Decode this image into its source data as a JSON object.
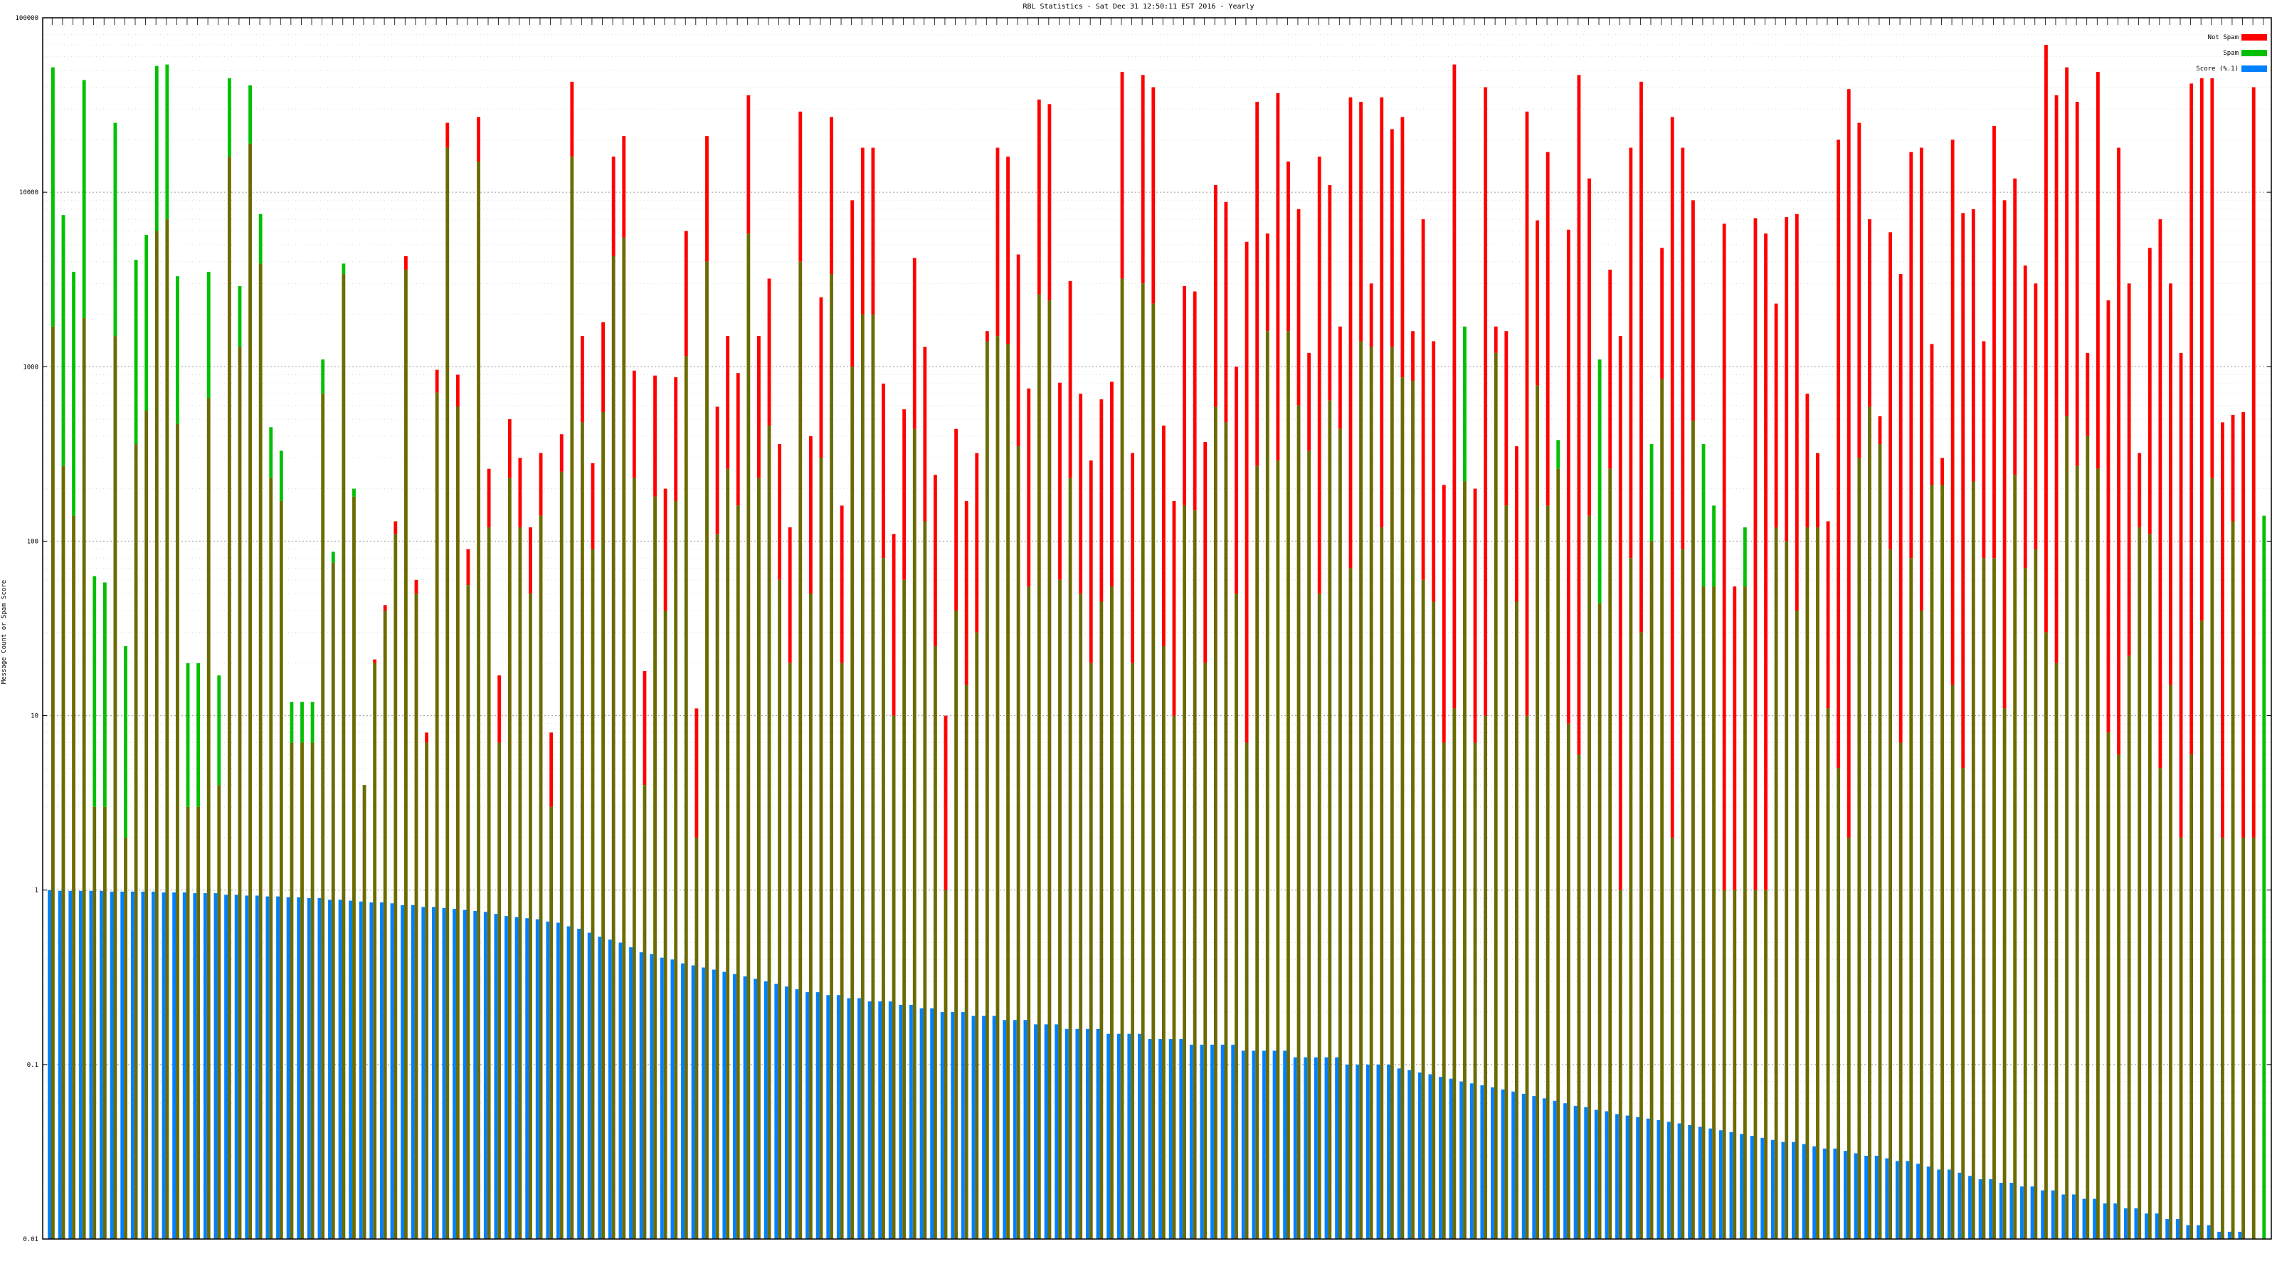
{
  "chart_data": {
    "type": "bar",
    "title": "RBL Statistics - Sat Dec 31 12:50:11 EST 2016 - Yearly",
    "ylabel": "Message Count or Spam Score",
    "xlabel": "",
    "yscale": "log",
    "ylim": [
      0.01,
      100000
    ],
    "y_ticks": [
      "0.01",
      "0.1",
      "1",
      "10",
      "100",
      "1000",
      "10000",
      "100000"
    ],
    "grid": true,
    "legend_position": "top-right",
    "colors": {
      "not_spam": "#ff0000",
      "spam": "#00c000",
      "score": "#0080ff",
      "overlap": "#6b6b00"
    },
    "series": [
      {
        "name": "Not Spam",
        "values": [
          1700,
          270,
          140,
          1900,
          3,
          3,
          1500,
          2,
          360,
          560,
          6000,
          7000,
          470,
          3,
          3,
          660,
          4,
          16000,
          1300,
          19000,
          3900,
          230,
          170,
          7,
          7,
          7,
          700,
          75,
          3400,
          180,
          4,
          21,
          43,
          130,
          4300,
          60,
          8,
          960,
          25000,
          900,
          90,
          27000,
          260,
          17,
          500,
          300,
          120,
          320,
          8,
          410,
          43000,
          1500,
          280,
          1800,
          16000,
          21000,
          950,
          18,
          890,
          200,
          870,
          6000,
          11,
          21000,
          590,
          1500,
          920,
          36000,
          1500,
          3200,
          360,
          120,
          29000,
          400,
          2500,
          27000,
          160,
          9000,
          18000,
          18000,
          800,
          110,
          570,
          4200,
          1300,
          240,
          10,
          440,
          170,
          320,
          1600,
          18000,
          16000,
          4400,
          750,
          34000,
          32000,
          810,
          3100,
          700,
          290,
          650,
          820,
          49000,
          320,
          47000,
          40000,
          460,
          170,
          2900,
          2700,
          370,
          11000,
          8800,
          1000,
          5200,
          33000,
          5800,
          37000,
          15000,
          8000,
          1200,
          16000,
          11000,
          1700,
          35000,
          33000,
          3000,
          35000,
          23000,
          27000,
          1600,
          7000,
          1400,
          210,
          54000,
          220,
          200,
          40000,
          1700,
          1600,
          350,
          29000,
          6900,
          17000,
          260,
          6100,
          47000,
          12000,
          44,
          3600,
          1500,
          18000,
          43000,
          100,
          4800,
          27000,
          18000,
          9000,
          55,
          55,
          6600,
          55,
          55,
          7100,
          5800,
          2300,
          7200,
          7500,
          700,
          320,
          130,
          20000,
          39000,
          25000,
          7000,
          520,
          5900,
          3400,
          17000,
          18000,
          1350,
          300,
          20000,
          7600,
          8000,
          1400,
          24000,
          9000,
          12000,
          3800,
          3000,
          70000,
          36000,
          52000,
          33000,
          1200,
          49000,
          2400,
          18000,
          3000,
          320,
          4800,
          7000,
          3000,
          1200,
          42000,
          45000,
          45000,
          480,
          530,
          550,
          40000
        ],
        "approximate": true
      },
      {
        "name": "Spam",
        "values": [
          52000,
          7400,
          3500,
          44000,
          63,
          58,
          25000,
          25,
          4100,
          5700,
          53000,
          54000,
          3300,
          20,
          20,
          3500,
          17,
          45000,
          2900,
          41000,
          7500,
          450,
          330,
          12,
          12,
          12,
          1100,
          87,
          3900,
          200,
          4,
          20,
          40,
          110,
          3600,
          50,
          7,
          710,
          18000,
          590,
          56,
          15000,
          120,
          7,
          230,
          120,
          50,
          140,
          3,
          250,
          16000,
          480,
          90,
          550,
          4300,
          5500,
          230,
          4,
          180,
          40,
          170,
          1150,
          2,
          4000,
          110,
          260,
          160,
          5800,
          230,
          460,
          60,
          20,
          4000,
          50,
          300,
          3400,
          20,
          1000,
          2000,
          2000,
          80,
          10,
          60,
          440,
          130,
          25,
          1,
          40,
          15,
          30,
          1400,
          1500,
          1350,
          350,
          55,
          2600,
          2400,
          60,
          230,
          50,
          20,
          45,
          55,
          3200,
          20,
          3000,
          2300,
          25,
          10,
          160,
          150,
          20,
          590,
          480,
          50,
          7,
          270,
          1600,
          290,
          1600,
          600,
          330,
          50,
          640,
          440,
          70,
          1400,
          1300,
          120,
          1300,
          870,
          830,
          60,
          45,
          7,
          11,
          1700,
          7,
          10,
          1200,
          160,
          45,
          10,
          780,
          160,
          380,
          9,
          6,
          140,
          1100,
          260,
          1,
          80,
          30,
          360,
          850,
          2,
          90,
          490,
          360,
          160,
          1,
          1,
          120,
          1,
          1,
          120,
          100,
          40,
          120,
          120,
          11,
          5,
          2,
          300,
          590,
          360,
          90,
          7,
          80,
          40,
          210,
          210,
          15,
          5,
          220,
          80,
          80,
          11,
          240,
          70,
          90,
          30,
          20,
          520,
          270,
          400,
          260,
          8,
          6,
          22,
          120,
          110,
          5,
          15,
          2,
          6,
          35,
          230,
          2,
          130,
          2,
          2,
          140
        ],
        "approximate": true
      },
      {
        "name": "Score (%.1)",
        "values": [
          1.0,
          0.99,
          0.99,
          0.99,
          0.99,
          0.99,
          0.98,
          0.98,
          0.98,
          0.98,
          0.98,
          0.97,
          0.97,
          0.97,
          0.96,
          0.96,
          0.96,
          0.94,
          0.94,
          0.93,
          0.93,
          0.92,
          0.92,
          0.91,
          0.91,
          0.9,
          0.9,
          0.88,
          0.88,
          0.87,
          0.86,
          0.85,
          0.85,
          0.84,
          0.82,
          0.82,
          0.8,
          0.8,
          0.79,
          0.78,
          0.77,
          0.76,
          0.75,
          0.73,
          0.71,
          0.7,
          0.69,
          0.68,
          0.66,
          0.65,
          0.62,
          0.6,
          0.57,
          0.54,
          0.52,
          0.5,
          0.47,
          0.44,
          0.43,
          0.41,
          0.4,
          0.38,
          0.37,
          0.36,
          0.35,
          0.34,
          0.33,
          0.32,
          0.31,
          0.3,
          0.29,
          0.28,
          0.27,
          0.26,
          0.26,
          0.25,
          0.25,
          0.24,
          0.24,
          0.23,
          0.23,
          0.23,
          0.22,
          0.22,
          0.21,
          0.21,
          0.2,
          0.2,
          0.2,
          0.19,
          0.19,
          0.19,
          0.18,
          0.18,
          0.18,
          0.17,
          0.17,
          0.17,
          0.16,
          0.16,
          0.16,
          0.16,
          0.15,
          0.15,
          0.15,
          0.15,
          0.14,
          0.14,
          0.14,
          0.14,
          0.13,
          0.13,
          0.13,
          0.13,
          0.13,
          0.12,
          0.12,
          0.12,
          0.12,
          0.12,
          0.11,
          0.11,
          0.11,
          0.11,
          0.11,
          0.1,
          0.1,
          0.1,
          0.1,
          0.1,
          0.095,
          0.093,
          0.09,
          0.088,
          0.085,
          0.083,
          0.08,
          0.078,
          0.076,
          0.074,
          0.072,
          0.07,
          0.068,
          0.066,
          0.064,
          0.062,
          0.06,
          0.058,
          0.057,
          0.055,
          0.054,
          0.052,
          0.051,
          0.05,
          0.049,
          0.048,
          0.047,
          0.046,
          0.045,
          0.044,
          0.043,
          0.042,
          0.041,
          0.04,
          0.039,
          0.038,
          0.037,
          0.036,
          0.036,
          0.035,
          0.034,
          0.033,
          0.033,
          0.032,
          0.031,
          0.03,
          0.03,
          0.029,
          0.028,
          0.028,
          0.027,
          0.026,
          0.025,
          0.025,
          0.024,
          0.023,
          0.022,
          0.022,
          0.021,
          0.021,
          0.02,
          0.02,
          0.019,
          0.019,
          0.018,
          0.018,
          0.017,
          0.017,
          0.016,
          0.016,
          0.015,
          0.015,
          0.014,
          0.014,
          0.013,
          0.013,
          0.012,
          0.012,
          0.012,
          0.011,
          0.011,
          0.011
        ],
        "approximate": true
      }
    ]
  }
}
